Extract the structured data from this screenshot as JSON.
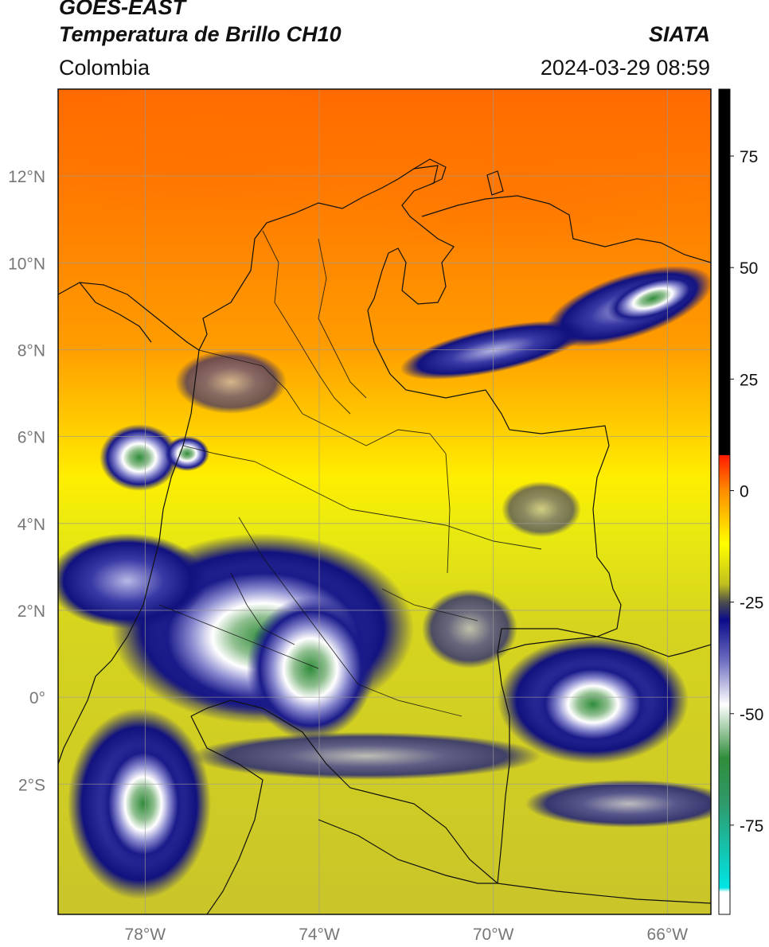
{
  "header": {
    "satellite": "GOES-EAST",
    "product": "Temperatura de Brillo CH10",
    "organization": "SIATA",
    "region": "Colombia",
    "timestamp": "2024-03-29 08:59"
  },
  "map": {
    "lon_range": [
      -80,
      -65
    ],
    "lat_range": [
      -5,
      14
    ],
    "lon_ticks": [
      {
        "value": -78,
        "label": "78°W"
      },
      {
        "value": -74,
        "label": "74°W"
      },
      {
        "value": -70,
        "label": "70°W"
      },
      {
        "value": -66,
        "label": "66°W"
      }
    ],
    "lat_ticks": [
      {
        "value": 12,
        "label": "12°N"
      },
      {
        "value": 10,
        "label": "10°N"
      },
      {
        "value": 8,
        "label": "8°N"
      },
      {
        "value": 6,
        "label": "6°N"
      },
      {
        "value": 4,
        "label": "4°N"
      },
      {
        "value": 2,
        "label": "2°N"
      },
      {
        "value": 0,
        "label": "0°"
      },
      {
        "value": -2,
        "label": "2°S"
      }
    ],
    "grid": true
  },
  "colorbar": {
    "range": [
      -95,
      90
    ],
    "ticks": [
      {
        "value": 75,
        "label": "75"
      },
      {
        "value": 50,
        "label": "50"
      },
      {
        "value": 25,
        "label": "25"
      },
      {
        "value": 0,
        "label": "0"
      },
      {
        "value": -25,
        "label": "-25"
      },
      {
        "value": -50,
        "label": "-50"
      },
      {
        "value": -75,
        "label": "-75"
      }
    ],
    "color_stops": [
      {
        "value": 90,
        "color": "#000000"
      },
      {
        "value": 8,
        "color": "#000000"
      },
      {
        "value": 7.9,
        "color": "#ff1a00"
      },
      {
        "value": 0,
        "color": "#ff8c00"
      },
      {
        "value": -12,
        "color": "#ffff00"
      },
      {
        "value": -21,
        "color": "#bfbf1f"
      },
      {
        "value": -25,
        "color": "#4d4d4d"
      },
      {
        "value": -29,
        "color": "#0b0b8a"
      },
      {
        "value": -38,
        "color": "#6c6cc0"
      },
      {
        "value": -48,
        "color": "#ffffff"
      },
      {
        "value": -60,
        "color": "#2f8c3a"
      },
      {
        "value": -70,
        "color": "#2f9a6a"
      },
      {
        "value": -89,
        "color": "#00e5e5"
      },
      {
        "value": -90,
        "color": "#ffffff"
      },
      {
        "value": -95,
        "color": "#ffffff"
      }
    ]
  }
}
